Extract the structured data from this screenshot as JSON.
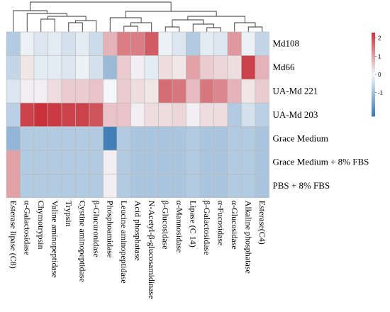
{
  "chart_data": {
    "type": "heatmap",
    "rows": [
      "Md108",
      "Md66",
      "UA-Md 221",
      "UA-Md 203",
      "Grace Medium",
      "Grace Medium + 8% FBS",
      "PBS + 8% FBS"
    ],
    "columns": [
      "Esterase lipase (C8)",
      "α-Galactosidase",
      "Chymotrypsin",
      "Valine aminopeptidase",
      "Trypsin",
      "Cystine aminopeptidase",
      "β-Glucuronidase",
      "Phosphoamidase",
      "Leucine aminopeptidase",
      "Acid phosphatase",
      "N-Acetyl-β-glucosamidinase",
      "β-Glucosidase",
      "α-Mannosidase",
      "Lipase (C 14)",
      "β-Galactosidase",
      "α-Fucosidase",
      "α-Glucosidase",
      "Alkaline phosphatase",
      "Esterase(C4)"
    ],
    "values": [
      [
        -0.8,
        -0.1,
        -0.3,
        -0.2,
        -0.4,
        -0.2,
        -0.5,
        0.8,
        1.4,
        1.4,
        1.8,
        -0.1,
        -0.3,
        -0.8,
        -0.2,
        -0.3,
        1.1,
        -0.1,
        -0.6
      ],
      [
        -0.6,
        0.2,
        -0.2,
        -0.2,
        -0.3,
        -0.1,
        -0.4,
        -1.1,
        0.5,
        0.1,
        -0.2,
        0.3,
        0.2,
        1.0,
        0.5,
        0.4,
        0.3,
        2.1,
        0.8
      ],
      [
        -0.3,
        0.1,
        0.1,
        0.3,
        0.5,
        0.5,
        0.6,
        0.0,
        0.5,
        0.3,
        0.2,
        1.6,
        1.5,
        0.7,
        1.5,
        1.3,
        0.8,
        0.2,
        0.5
      ],
      [
        -0.7,
        2.1,
        2.4,
        2.2,
        2.1,
        2.1,
        1.9,
        0.6,
        0.6,
        0.1,
        0.3,
        0.3,
        0.4,
        0.1,
        0.3,
        0.3,
        -0.8,
        -0.4,
        -0.7
      ],
      [
        -1.2,
        -0.8,
        -0.8,
        -0.8,
        -0.8,
        -0.8,
        -0.8,
        -2.2,
        -0.8,
        -0.9,
        -0.9,
        -0.9,
        -0.9,
        -0.8,
        -0.9,
        -0.9,
        -0.8,
        -0.8,
        -0.9
      ],
      [
        1.0,
        -0.8,
        -0.8,
        -0.8,
        -0.8,
        -0.8,
        -0.8,
        0.1,
        -0.8,
        -0.9,
        -0.9,
        -0.9,
        -0.9,
        -0.8,
        -0.9,
        -0.9,
        -0.8,
        -0.8,
        -0.9
      ],
      [
        1.0,
        -0.8,
        -0.8,
        -0.8,
        -0.8,
        -0.8,
        -0.8,
        0.1,
        -0.8,
        -0.9,
        -0.9,
        -0.9,
        -0.9,
        -0.8,
        -0.9,
        -0.9,
        -0.8,
        -0.8,
        -0.9
      ]
    ],
    "scale": {
      "range": [
        -2.3,
        2.3
      ],
      "tick_labels": [
        "2",
        "1",
        "0",
        "-1"
      ],
      "tick_values": [
        2,
        1,
        0,
        -1
      ],
      "low_color": "#3a78b5",
      "mid_color": "#f4f7f9",
      "high_color": "#c8313a"
    },
    "grid": true,
    "legend": "top-right",
    "column_dendrogram": true,
    "row_dendrogram": false
  }
}
